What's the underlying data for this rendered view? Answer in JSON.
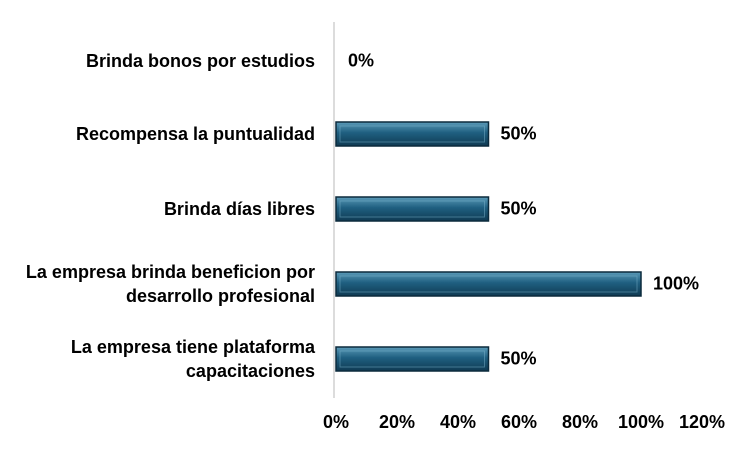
{
  "chart_data": {
    "type": "bar",
    "orientation": "horizontal",
    "categories": [
      "Brinda bonos por estudios",
      "Recompensa la puntualidad",
      "Brinda días libres",
      "La empresa brinda beneficion por desarrollo profesional",
      "La empresa tiene plataforma capacitaciones"
    ],
    "category_lines": [
      [
        "Brinda bonos por estudios"
      ],
      [
        "Recompensa la puntualidad"
      ],
      [
        "Brinda días libres"
      ],
      [
        "La empresa brinda beneficion por",
        "desarrollo profesional"
      ],
      [
        "La empresa tiene plataforma",
        "capacitaciones"
      ]
    ],
    "values": [
      0,
      50,
      50,
      100,
      50
    ],
    "value_labels": [
      "0%",
      "50%",
      "50%",
      "100%",
      "50%"
    ],
    "xlim": [
      0,
      120
    ],
    "x_ticks": [
      0,
      20,
      40,
      60,
      80,
      100,
      120
    ],
    "x_tick_labels": [
      "0%",
      "20%",
      "40%",
      "60%",
      "80%",
      "100%",
      "120%"
    ],
    "bar_color": "#1f5f80",
    "grid": false
  }
}
